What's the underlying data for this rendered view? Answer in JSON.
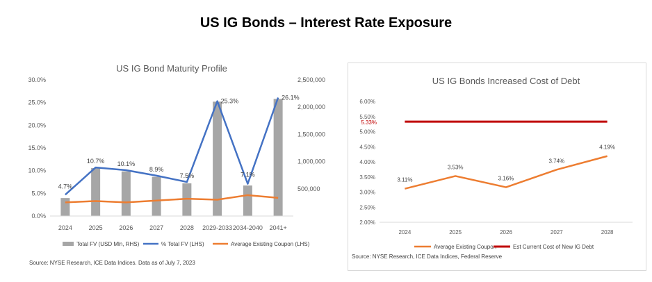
{
  "title": "US IG Bonds – Interest Rate Exposure",
  "chart_data": [
    {
      "type": "bar",
      "title": "US IG Bond Maturity Profile",
      "categories": [
        "2024",
        "2025",
        "2026",
        "2027",
        "2028",
        "2029-2033",
        "2034-2040",
        "2041+"
      ],
      "series": [
        {
          "name": "Total FV (USD Mln, RHS)",
          "kind": "bar",
          "axis": "right",
          "color": "#a6a6a6",
          "values": [
            330000,
            880000,
            820000,
            720000,
            600000,
            2100000,
            560000,
            2150000
          ]
        },
        {
          "name": "% Total FV (LHS)",
          "kind": "line",
          "axis": "left",
          "color": "#4472c4",
          "values": [
            4.7,
            10.7,
            10.1,
            8.9,
            7.5,
            25.3,
            7.1,
            26.1
          ],
          "labels": [
            "4.7%",
            "10.7%",
            "10.1%",
            "8.9%",
            "7.5%",
            "25.3%",
            "7.1%",
            "26.1%"
          ]
        },
        {
          "name": "Average Existing Coupon (LHS)",
          "kind": "line",
          "axis": "left",
          "color": "#ed7d31",
          "values": [
            3.0,
            3.3,
            3.0,
            3.4,
            3.8,
            3.6,
            4.6,
            4.0
          ]
        }
      ],
      "ylim_left": [
        0,
        30
      ],
      "yticks_left": [
        "0.0%",
        "5.0%",
        "10.0%",
        "15.0%",
        "20.0%",
        "25.0%",
        "30.0%"
      ],
      "ylim_right": [
        0,
        2500000
      ],
      "yticks_right": [
        "500,000",
        "1,000,000",
        "1,500,000",
        "2,000,000",
        "2,500,000"
      ],
      "legend": "bottom",
      "source": "Source: NYSE Research, ICE Data Indices. Data as of July 7, 2023"
    },
    {
      "type": "line",
      "title": "US IG Bonds Increased Cost of Debt",
      "categories": [
        "2024",
        "2025",
        "2026",
        "2027",
        "2028"
      ],
      "series": [
        {
          "name": "Average Existing Coupon",
          "color": "#ed7d31",
          "values": [
            3.11,
            3.53,
            3.16,
            3.74,
            4.19
          ],
          "labels": [
            "3.11%",
            "3.53%",
            "3.16%",
            "3.74%",
            "4.19%"
          ]
        },
        {
          "name": "Est Current Cost of New IG Debt",
          "color": "#c00000",
          "values": [
            5.33,
            5.33,
            5.33,
            5.33,
            5.33
          ],
          "label": "5.33%"
        }
      ],
      "ylim": [
        2.0,
        6.0
      ],
      "yticks": [
        "2.00%",
        "2.50%",
        "3.00%",
        "3.50%",
        "4.00%",
        "4.50%",
        "5.00%",
        "5.50%",
        "6.00%"
      ],
      "legend": "bottom",
      "source": "Source: NYSE Research, ICE Data Indices, Federal Reserve"
    }
  ]
}
